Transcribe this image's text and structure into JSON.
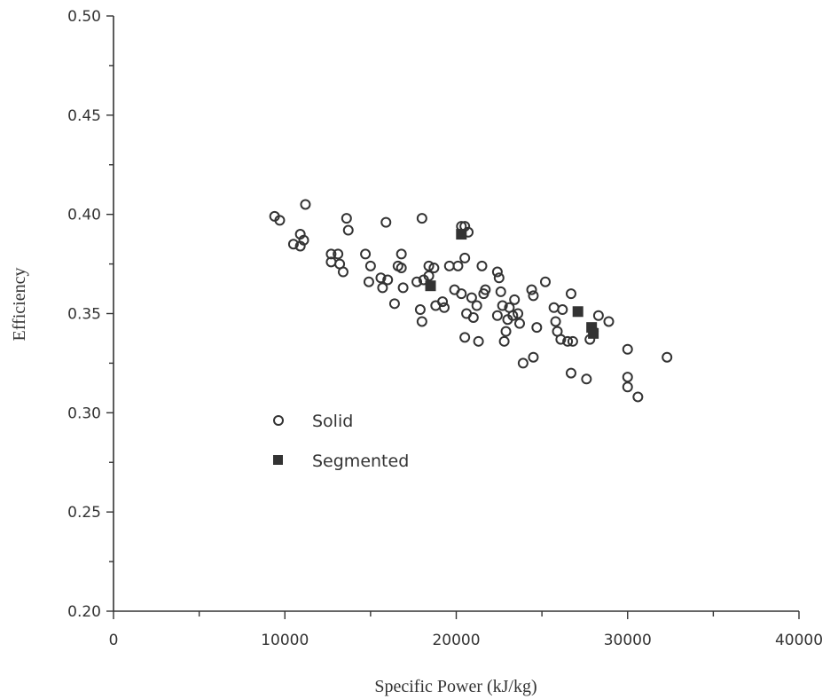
{
  "chart_data": {
    "type": "scatter",
    "xlabel": "Specific Power (kJ/kg)",
    "ylabel": "Efficiency",
    "xlim": [
      0,
      40000
    ],
    "ylim": [
      0.2,
      0.5
    ],
    "x_ticks": [
      "0",
      "10000",
      "20000",
      "30000",
      "40000"
    ],
    "y_ticks": [
      "0.20",
      "0.25",
      "0.30",
      "0.35",
      "0.40",
      "0.45",
      "0.50"
    ],
    "grid": false,
    "legend_position": "lower-left inside plot",
    "series": [
      {
        "name": "Solid",
        "marker": "open-circle",
        "color": "#333333",
        "points": [
          [
            9400,
            0.399
          ],
          [
            9700,
            0.397
          ],
          [
            10500,
            0.385
          ],
          [
            10900,
            0.384
          ],
          [
            10900,
            0.39
          ],
          [
            11100,
            0.387
          ],
          [
            11200,
            0.405
          ],
          [
            12700,
            0.38
          ],
          [
            12700,
            0.376
          ],
          [
            13100,
            0.38
          ],
          [
            13200,
            0.375
          ],
          [
            13400,
            0.371
          ],
          [
            13600,
            0.398
          ],
          [
            13700,
            0.392
          ],
          [
            14700,
            0.38
          ],
          [
            14900,
            0.366
          ],
          [
            15000,
            0.374
          ],
          [
            15600,
            0.368
          ],
          [
            15700,
            0.363
          ],
          [
            15900,
            0.396
          ],
          [
            16000,
            0.367
          ],
          [
            16400,
            0.355
          ],
          [
            16600,
            0.374
          ],
          [
            16800,
            0.38
          ],
          [
            16800,
            0.373
          ],
          [
            16900,
            0.363
          ],
          [
            17700,
            0.366
          ],
          [
            17900,
            0.352
          ],
          [
            18000,
            0.346
          ],
          [
            18000,
            0.398
          ],
          [
            18100,
            0.367
          ],
          [
            18400,
            0.374
          ],
          [
            18400,
            0.369
          ],
          [
            18700,
            0.373
          ],
          [
            18800,
            0.354
          ],
          [
            19200,
            0.356
          ],
          [
            19300,
            0.353
          ],
          [
            19600,
            0.374
          ],
          [
            19900,
            0.362
          ],
          [
            20100,
            0.374
          ],
          [
            20300,
            0.36
          ],
          [
            20300,
            0.394
          ],
          [
            20500,
            0.394
          ],
          [
            20500,
            0.378
          ],
          [
            20500,
            0.338
          ],
          [
            20600,
            0.35
          ],
          [
            20700,
            0.391
          ],
          [
            20900,
            0.358
          ],
          [
            21000,
            0.348
          ],
          [
            21200,
            0.354
          ],
          [
            21300,
            0.336
          ],
          [
            21500,
            0.374
          ],
          [
            21600,
            0.36
          ],
          [
            21700,
            0.362
          ],
          [
            22400,
            0.371
          ],
          [
            22400,
            0.349
          ],
          [
            22500,
            0.368
          ],
          [
            22600,
            0.361
          ],
          [
            22700,
            0.354
          ],
          [
            22800,
            0.336
          ],
          [
            22900,
            0.341
          ],
          [
            23000,
            0.347
          ],
          [
            23100,
            0.353
          ],
          [
            23300,
            0.349
          ],
          [
            23400,
            0.357
          ],
          [
            23600,
            0.35
          ],
          [
            23700,
            0.345
          ],
          [
            23900,
            0.325
          ],
          [
            24400,
            0.362
          ],
          [
            24500,
            0.359
          ],
          [
            24500,
            0.328
          ],
          [
            24700,
            0.343
          ],
          [
            25200,
            0.366
          ],
          [
            25700,
            0.353
          ],
          [
            25800,
            0.346
          ],
          [
            25900,
            0.341
          ],
          [
            26100,
            0.337
          ],
          [
            26200,
            0.352
          ],
          [
            26500,
            0.336
          ],
          [
            26700,
            0.36
          ],
          [
            26700,
            0.32
          ],
          [
            26800,
            0.336
          ],
          [
            27600,
            0.317
          ],
          [
            27800,
            0.337
          ],
          [
            28000,
            0.341
          ],
          [
            28300,
            0.349
          ],
          [
            28900,
            0.346
          ],
          [
            30000,
            0.332
          ],
          [
            30000,
            0.318
          ],
          [
            30000,
            0.313
          ],
          [
            30600,
            0.308
          ],
          [
            32300,
            0.328
          ]
        ]
      },
      {
        "name": "Segmented",
        "marker": "filled-square",
        "color": "#333333",
        "points": [
          [
            18500,
            0.364
          ],
          [
            20300,
            0.39
          ],
          [
            27100,
            0.351
          ],
          [
            27900,
            0.343
          ],
          [
            28000,
            0.34
          ]
        ]
      }
    ]
  }
}
